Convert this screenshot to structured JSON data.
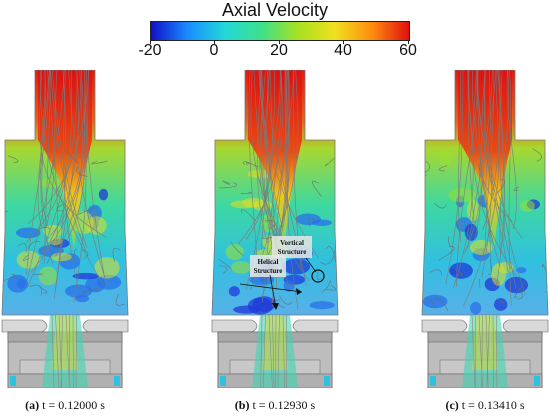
{
  "colorbar": {
    "title": "Axial Velocity",
    "ticks": [
      "-20",
      "0",
      "20",
      "40",
      "60"
    ],
    "range": [
      -20,
      60
    ],
    "colors": [
      "#1010c8",
      "#1a8cff",
      "#22d8d8",
      "#3ee08a",
      "#a8e020",
      "#f0e020",
      "#ff8c10",
      "#e01010"
    ]
  },
  "panels": [
    {
      "tag": "(a)",
      "label": "t = 0.12000 s"
    },
    {
      "tag": "(b)",
      "label": "t = 0.12930 s"
    },
    {
      "tag": "(c)",
      "label": "t = 0.13410 s"
    }
  ],
  "annotations": {
    "vortical_line1": "Vortical",
    "vortical_line2": "Structure",
    "helical_line1": "Helical",
    "helical_line2": "Structure"
  }
}
